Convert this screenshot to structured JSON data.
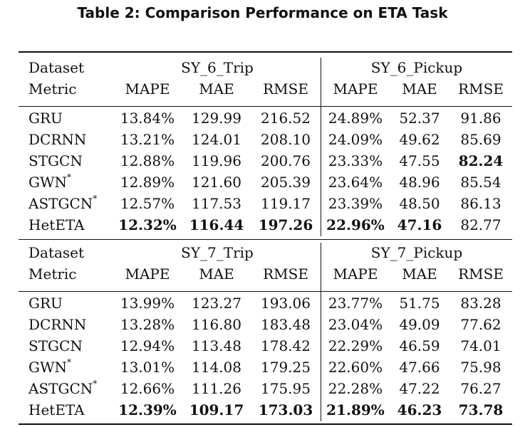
{
  "caption": "Table 2: Comparison Performance on ETA Task",
  "header": {
    "dataset_label": "Dataset",
    "metric_label": "Metric",
    "metrics": [
      "MAPE",
      "MAE",
      "RMSE",
      "MAPE",
      "MAE",
      "RMSE"
    ]
  },
  "blocks": [
    {
      "group_left": "SY_6_Trip",
      "group_right": "SY_6_Pickup",
      "rows": [
        {
          "model": "GRU",
          "sup": "",
          "values": [
            "13.84%",
            "129.99",
            "216.52",
            "24.89%",
            "52.37",
            "91.86"
          ]
        },
        {
          "model": "DCRNN",
          "sup": "",
          "values": [
            "13.21%",
            "124.01",
            "208.10",
            "24.09%",
            "49.62",
            "85.69"
          ]
        },
        {
          "model": "STGCN",
          "sup": "",
          "values": [
            "12.88%",
            "119.96",
            "200.76",
            "23.33%",
            "47.55",
            "82.24"
          ]
        },
        {
          "model": "GWN",
          "sup": "*",
          "values": [
            "12.89%",
            "121.60",
            "205.39",
            "23.64%",
            "48.96",
            "85.54"
          ]
        },
        {
          "model": "ASTGCN",
          "sup": "*",
          "values": [
            "12.57%",
            "117.53",
            "119.17",
            "23.39%",
            "48.50",
            "86.13"
          ]
        },
        {
          "model": "HetETA",
          "sup": "",
          "values": [
            "12.32%",
            "116.44",
            "197.26",
            "22.96%",
            "47.16",
            "82.77"
          ]
        }
      ]
    },
    {
      "group_left": "SY_7_Trip",
      "group_right": "SY_7_Pickup",
      "rows": [
        {
          "model": "GRU",
          "sup": "",
          "values": [
            "13.99%",
            "123.27",
            "193.06",
            "23.77%",
            "51.75",
            "83.28"
          ]
        },
        {
          "model": "DCRNN",
          "sup": "",
          "values": [
            "13.28%",
            "116.80",
            "183.48",
            "23.04%",
            "49.09",
            "77.62"
          ]
        },
        {
          "model": "STGCN",
          "sup": "",
          "values": [
            "12.94%",
            "113.48",
            "178.42",
            "22.29%",
            "46.59",
            "74.01"
          ]
        },
        {
          "model": "GWN",
          "sup": "*",
          "values": [
            "13.01%",
            "114.08",
            "179.25",
            "22.60%",
            "47.66",
            "75.98"
          ]
        },
        {
          "model": "ASTGCN",
          "sup": "*",
          "values": [
            "12.66%",
            "111.26",
            "175.95",
            "22.28%",
            "47.22",
            "76.27"
          ]
        },
        {
          "model": "HetETA",
          "sup": "",
          "values": [
            "12.39%",
            "109.17",
            "173.03",
            "21.89%",
            "46.23",
            "73.78"
          ]
        }
      ]
    }
  ]
}
